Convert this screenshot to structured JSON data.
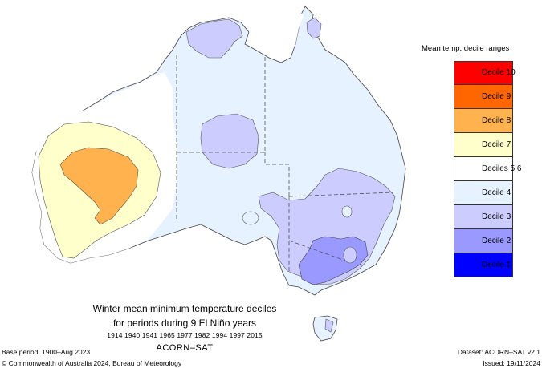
{
  "legend": {
    "title": "Mean temp. decile ranges",
    "items": [
      {
        "label": "Decile 10",
        "color": "#ff0000"
      },
      {
        "label": "Decile 9",
        "color": "#ff6600"
      },
      {
        "label": "Decile 8",
        "color": "#ffb24d"
      },
      {
        "label": "Decile 7",
        "color": "#ffffcc"
      },
      {
        "label": "Deciles 5,6",
        "color": "#ffffff"
      },
      {
        "label": "Decile 4",
        "color": "#e6f2ff"
      },
      {
        "label": "Decile 3",
        "color": "#ccccff"
      },
      {
        "label": "Decile 2",
        "color": "#9999ff"
      },
      {
        "label": "Decile 1",
        "color": "#0000ff"
      }
    ]
  },
  "title": {
    "line1": "Winter mean minimum temperature deciles",
    "line2": "for periods during 9 El Niño years",
    "years": "1914 1940 1941 1965 1977 1982 1994 1997 2015",
    "dataset_name": "ACORN–SAT"
  },
  "footer": {
    "base_period": "Base period: 1900–Aug 2023",
    "copyright": "© Commonwealth of Australia 2024, Bureau of Meteorology",
    "dataset": "Dataset: ACORN–SAT v2.1",
    "issued": "Issued: 19/11/2024"
  },
  "map_regions": {
    "landmass": "Australia",
    "dominant_category": "Decile 4",
    "west_core_category": "Decile 8",
    "west_ring_category": "Decile 7",
    "southeast_core_category": "Decile 2",
    "southeast_ring_category": "Decile 3"
  }
}
